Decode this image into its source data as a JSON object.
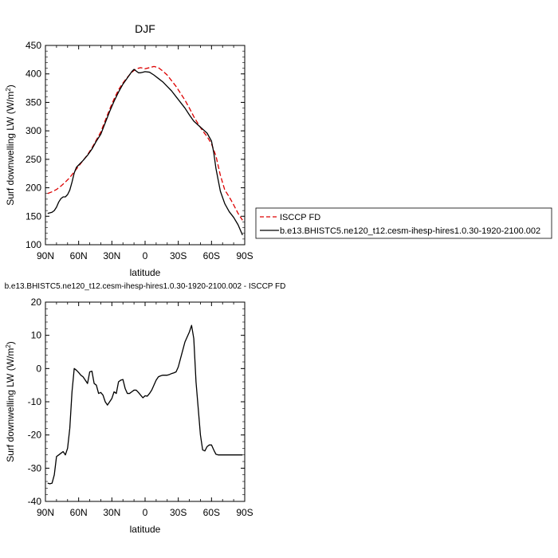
{
  "chart_data": [
    {
      "type": "line",
      "title": "DJF",
      "xlabel": "latitude",
      "ylabel": "Surf downwelling LW (W/m²)",
      "xlim": [
        90,
        -90
      ],
      "ylim": [
        100,
        450
      ],
      "xticks": [
        90,
        60,
        30,
        0,
        -30,
        -60,
        -90
      ],
      "xticklabels": [
        "90N",
        "60N",
        "30N",
        "0",
        "30S",
        "60S",
        "90S"
      ],
      "yticks": [
        100,
        150,
        200,
        250,
        300,
        350,
        400,
        450
      ],
      "yticklabels": [
        "100",
        "150",
        "200",
        "250",
        "300",
        "350",
        "400",
        "450"
      ],
      "legend_placement": "right",
      "series": [
        {
          "name": "ISCCP FD",
          "color": "#dd0000",
          "dash": "dashed",
          "x": [
            88,
            84,
            80,
            76,
            72,
            68,
            64,
            60,
            56,
            52,
            48,
            44,
            40,
            36,
            32,
            28,
            24,
            20,
            16,
            12,
            8,
            4,
            0,
            -4,
            -8,
            -12,
            -16,
            -20,
            -24,
            -28,
            -32,
            -36,
            -40,
            -44,
            -48,
            -52,
            -56,
            -60,
            -64,
            -68,
            -72,
            -76,
            -80,
            -84,
            -88
          ],
          "y": [
            190,
            193,
            197,
            203,
            210,
            218,
            228,
            238,
            248,
            258,
            270,
            284,
            298,
            318,
            338,
            356,
            372,
            384,
            394,
            403,
            409,
            411,
            409,
            411,
            413,
            411,
            405,
            398,
            388,
            378,
            366,
            354,
            340,
            325,
            312,
            300,
            290,
            277,
            256,
            222,
            196,
            184,
            170,
            155,
            143
          ]
        },
        {
          "name": "b.e13.BHISTC5.ne120_t12.cesm-ihesp-hires1.0.30-1920-2100.002",
          "color": "#000000",
          "dash": "solid",
          "x": [
            88,
            84,
            82,
            80,
            78,
            76,
            74,
            72,
            70,
            68,
            66,
            64,
            62,
            60,
            56,
            52,
            48,
            44,
            40,
            36,
            32,
            28,
            24,
            20,
            16,
            12,
            10,
            8,
            6,
            4,
            2,
            0,
            -4,
            -8,
            -12,
            -16,
            -20,
            -24,
            -28,
            -32,
            -36,
            -40,
            -44,
            -48,
            -52,
            -56,
            -60,
            -62,
            -64,
            -66,
            -68,
            -72,
            -76,
            -80,
            -84,
            -88
          ],
          "y": [
            155,
            157,
            160,
            166,
            175,
            181,
            184,
            184,
            188,
            196,
            210,
            226,
            236,
            240,
            248,
            257,
            268,
            282,
            294,
            314,
            334,
            352,
            368,
            382,
            393,
            404,
            408,
            405,
            402,
            402,
            403,
            404,
            403,
            398,
            392,
            386,
            378,
            370,
            360,
            350,
            340,
            328,
            317,
            310,
            303,
            296,
            282,
            262,
            234,
            214,
            194,
            172,
            158,
            148,
            135,
            117
          ]
        }
      ]
    },
    {
      "type": "line",
      "title": "b.e13.BHISTC5.ne120_t12.cesm-ihesp-hires1.0.30-1920-2100.002 - ISCCP FD",
      "xlabel": "latitude",
      "ylabel": "Surf downwelling LW (W/m²)",
      "xlim": [
        90,
        -90
      ],
      "ylim": [
        -40,
        20
      ],
      "xticks": [
        90,
        60,
        30,
        0,
        -30,
        -60,
        -90
      ],
      "xticklabels": [
        "90N",
        "60N",
        "30N",
        "0",
        "30S",
        "60S",
        "90S"
      ],
      "yticks": [
        -40,
        -30,
        -20,
        -10,
        0,
        10,
        20
      ],
      "yticklabels": [
        "-40",
        "-30",
        "-20",
        "-10",
        "0",
        "10",
        "20"
      ],
      "series": [
        {
          "color": "#000000",
          "dash": "solid",
          "x": [
            88,
            86,
            84,
            82,
            80,
            78,
            76,
            74,
            72,
            70,
            68,
            66,
            64,
            62,
            60,
            58,
            56,
            54,
            52,
            50,
            48,
            46,
            44,
            42,
            40,
            38,
            36,
            34,
            32,
            30,
            28,
            26,
            24,
            22,
            20,
            18,
            16,
            14,
            12,
            10,
            8,
            6,
            4,
            2,
            0,
            -2,
            -4,
            -6,
            -8,
            -10,
            -12,
            -14,
            -16,
            -18,
            -20,
            -22,
            -24,
            -26,
            -28,
            -30,
            -32,
            -34,
            -36,
            -38,
            -40,
            -42,
            -44,
            -46,
            -48,
            -50,
            -52,
            -54,
            -56,
            -58,
            -60,
            -62,
            -64,
            -66,
            -68,
            -70,
            -72,
            -74,
            -76,
            -78,
            -80,
            -82,
            -84,
            -86,
            -88
          ],
          "y": [
            -34.5,
            -34.7,
            -34.5,
            -32,
            -26.5,
            -26,
            -25.5,
            -25,
            -26,
            -24,
            -18,
            -7,
            0,
            -0.5,
            -1.2,
            -2,
            -2.5,
            -3.5,
            -4.5,
            -1,
            -0.8,
            -4.5,
            -5,
            -7.5,
            -7.2,
            -8,
            -10,
            -11,
            -10,
            -9,
            -7,
            -7.5,
            -4,
            -3.5,
            -3.3,
            -6,
            -7.5,
            -7.5,
            -7,
            -6.5,
            -6.5,
            -7.2,
            -8,
            -8.8,
            -8.2,
            -8.3,
            -7.5,
            -6.5,
            -5,
            -3.5,
            -2.5,
            -2.2,
            -2.0,
            -2.0,
            -2.0,
            -1.8,
            -1.5,
            -1.3,
            -1.0,
            0.5,
            3,
            5.5,
            8,
            9.5,
            11,
            13,
            9,
            -4,
            -12,
            -20,
            -24.5,
            -24.8,
            -23.5,
            -23,
            -23,
            -24.5,
            -25.8,
            -26,
            -26,
            -26,
            -26,
            -26,
            -26,
            -26,
            -26,
            -26,
            -26,
            -26,
            -26
          ]
        }
      ]
    }
  ]
}
